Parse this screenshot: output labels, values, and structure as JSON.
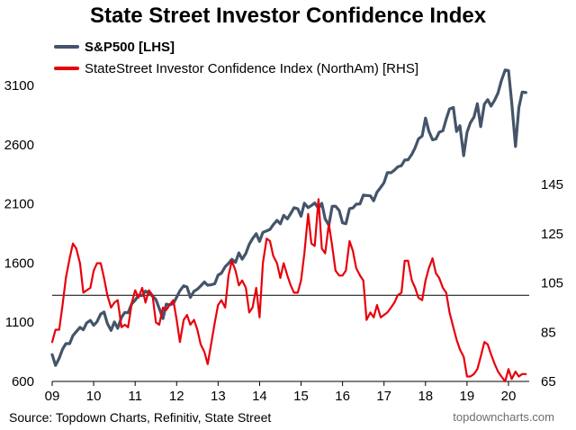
{
  "title": "State Street Investor Confidence Index",
  "colors": {
    "spx": "#44546a",
    "icc": "#e8000b",
    "axis": "#000000"
  },
  "legend": {
    "spx_label": "S&P500 [LHS]",
    "icc_label": "StateStreet Investor Confidence Index (NorthAm) [RHS]"
  },
  "source": "Source: Topdown Charts, Refinitiv, State Street",
  "brand": "topdowncharts.com",
  "chart_data": {
    "type": "line",
    "title": "State Street Investor Confidence Index",
    "x_range": [
      2009.0,
      2020.5
    ],
    "x_ticks": [
      {
        "value": 2009,
        "label": "09"
      },
      {
        "value": 2010,
        "label": "10"
      },
      {
        "value": 2011,
        "label": "11"
      },
      {
        "value": 2012,
        "label": "12"
      },
      {
        "value": 2013,
        "label": "13"
      },
      {
        "value": 2014,
        "label": "14"
      },
      {
        "value": 2015,
        "label": "15"
      },
      {
        "value": 2016,
        "label": "16"
      },
      {
        "value": 2017,
        "label": "17"
      },
      {
        "value": 2018,
        "label": "18"
      },
      {
        "value": 2019,
        "label": "19"
      },
      {
        "value": 2020,
        "label": "20"
      }
    ],
    "left_axis": {
      "range": [
        600,
        3100
      ],
      "ticks": [
        600,
        1100,
        1600,
        2100,
        2600,
        3100
      ]
    },
    "right_axis": {
      "range": [
        65,
        145
      ],
      "ticks": [
        65,
        85,
        105,
        125,
        145
      ]
    },
    "reference_line": {
      "axis": "right",
      "value": 100
    },
    "grid": false,
    "series": [
      {
        "name": "S&P500 [LHS]",
        "axis": "left",
        "x": [
          2009.0,
          2009.08,
          2009.17,
          2009.25,
          2009.33,
          2009.42,
          2009.5,
          2009.58,
          2009.67,
          2009.75,
          2009.83,
          2009.92,
          2010.0,
          2010.08,
          2010.17,
          2010.25,
          2010.33,
          2010.42,
          2010.5,
          2010.58,
          2010.67,
          2010.75,
          2010.83,
          2010.92,
          2011.0,
          2011.08,
          2011.17,
          2011.25,
          2011.33,
          2011.42,
          2011.5,
          2011.58,
          2011.67,
          2011.75,
          2011.83,
          2011.92,
          2012.0,
          2012.08,
          2012.17,
          2012.25,
          2012.33,
          2012.42,
          2012.5,
          2012.58,
          2012.67,
          2012.75,
          2012.83,
          2012.92,
          2013.0,
          2013.08,
          2013.17,
          2013.25,
          2013.33,
          2013.42,
          2013.5,
          2013.58,
          2013.67,
          2013.75,
          2013.83,
          2013.92,
          2014.0,
          2014.08,
          2014.17,
          2014.25,
          2014.33,
          2014.42,
          2014.5,
          2014.58,
          2014.67,
          2014.75,
          2014.83,
          2014.92,
          2015.0,
          2015.08,
          2015.17,
          2015.25,
          2015.33,
          2015.42,
          2015.5,
          2015.58,
          2015.67,
          2015.75,
          2015.83,
          2015.92,
          2016.0,
          2016.08,
          2016.17,
          2016.25,
          2016.33,
          2016.42,
          2016.5,
          2016.58,
          2016.67,
          2016.75,
          2016.83,
          2016.92,
          2017.0,
          2017.08,
          2017.17,
          2017.25,
          2017.33,
          2017.42,
          2017.5,
          2017.58,
          2017.67,
          2017.75,
          2017.83,
          2017.92,
          2018.0,
          2018.08,
          2018.17,
          2018.25,
          2018.33,
          2018.42,
          2018.5,
          2018.58,
          2018.67,
          2018.75,
          2018.83,
          2018.92,
          2019.0,
          2019.08,
          2019.17,
          2019.25,
          2019.33,
          2019.42,
          2019.5,
          2019.58,
          2019.67,
          2019.75,
          2019.83,
          2019.92,
          2020.0,
          2020.08,
          2020.17,
          2020.25,
          2020.33,
          2020.42
        ],
        "values": [
          826,
          735,
          797,
          872,
          919,
          919,
          987,
          1020,
          1057,
          1036,
          1095,
          1115,
          1074,
          1104,
          1169,
          1187,
          1089,
          1031,
          1102,
          1049,
          1141,
          1183,
          1180,
          1257,
          1286,
          1327,
          1325,
          1363,
          1345,
          1320,
          1292,
          1218,
          1131,
          1253,
          1247,
          1257,
          1312,
          1366,
          1408,
          1398,
          1310,
          1362,
          1379,
          1406,
          1440,
          1412,
          1416,
          1426,
          1498,
          1514,
          1569,
          1597,
          1631,
          1606,
          1686,
          1633,
          1682,
          1757,
          1806,
          1848,
          1783,
          1859,
          1872,
          1884,
          1924,
          1960,
          1931,
          2003,
          1972,
          2018,
          2067,
          2059,
          1995,
          2105,
          2068,
          2086,
          2107,
          2063,
          2104,
          1972,
          1920,
          2079,
          2080,
          2044,
          1940,
          1932,
          2060,
          2065,
          2097,
          2099,
          2174,
          2171,
          2168,
          2126,
          2199,
          2239,
          2279,
          2364,
          2363,
          2384,
          2412,
          2423,
          2470,
          2472,
          2519,
          2575,
          2648,
          2674,
          2824,
          2714,
          2641,
          2648,
          2705,
          2718,
          2816,
          2902,
          2914,
          2712,
          2760,
          2507,
          2704,
          2784,
          2834,
          2946,
          2752,
          2942,
          2980,
          2926,
          2977,
          3038,
          3141,
          3231,
          3226,
          2954,
          2585,
          2912,
          3044,
          3040
        ]
      },
      {
        "name": "StateStreet Investor Confidence Index (NorthAm) [RHS]",
        "axis": "right",
        "x": [
          2009.0,
          2009.08,
          2009.17,
          2009.25,
          2009.33,
          2009.42,
          2009.5,
          2009.58,
          2009.67,
          2009.75,
          2009.83,
          2009.92,
          2010.0,
          2010.08,
          2010.17,
          2010.25,
          2010.33,
          2010.42,
          2010.5,
          2010.58,
          2010.67,
          2010.75,
          2010.83,
          2010.92,
          2011.0,
          2011.08,
          2011.17,
          2011.25,
          2011.33,
          2011.42,
          2011.5,
          2011.58,
          2011.67,
          2011.75,
          2011.83,
          2011.92,
          2012.0,
          2012.08,
          2012.17,
          2012.25,
          2012.33,
          2012.42,
          2012.5,
          2012.58,
          2012.67,
          2012.75,
          2012.83,
          2012.92,
          2013.0,
          2013.08,
          2013.17,
          2013.25,
          2013.33,
          2013.42,
          2013.5,
          2013.58,
          2013.67,
          2013.75,
          2013.83,
          2013.92,
          2014.0,
          2014.08,
          2014.17,
          2014.25,
          2014.33,
          2014.42,
          2014.5,
          2014.58,
          2014.67,
          2014.75,
          2014.83,
          2014.92,
          2015.0,
          2015.08,
          2015.17,
          2015.25,
          2015.33,
          2015.42,
          2015.5,
          2015.58,
          2015.67,
          2015.75,
          2015.83,
          2015.92,
          2016.0,
          2016.08,
          2016.17,
          2016.25,
          2016.33,
          2016.42,
          2016.5,
          2016.58,
          2016.67,
          2016.75,
          2016.83,
          2016.92,
          2017.0,
          2017.08,
          2017.17,
          2017.25,
          2017.33,
          2017.42,
          2017.5,
          2017.58,
          2017.67,
          2017.75,
          2017.83,
          2017.92,
          2018.0,
          2018.08,
          2018.17,
          2018.25,
          2018.33,
          2018.42,
          2018.5,
          2018.58,
          2018.67,
          2018.75,
          2018.83,
          2018.92,
          2019.0,
          2019.08,
          2019.17,
          2019.25,
          2019.33,
          2019.42,
          2019.5,
          2019.58,
          2019.67,
          2019.75,
          2019.83,
          2019.92,
          2020.0,
          2020.08,
          2020.17,
          2020.25,
          2020.33,
          2020.42
        ],
        "values": [
          81,
          86,
          86,
          96,
          107,
          115,
          121,
          119,
          113,
          101,
          102,
          103,
          110,
          113,
          113,
          107,
          100,
          95,
          97,
          98,
          87,
          88,
          87,
          97,
          102,
          99,
          103,
          97,
          102,
          100,
          89,
          88,
          95,
          94,
          96,
          98,
          90,
          81,
          90,
          92,
          88,
          90,
          86,
          80,
          77,
          72,
          80,
          89,
          96,
          98,
          95,
          108,
          114,
          110,
          104,
          106,
          103,
          93,
          95,
          103,
          91,
          113,
          123,
          122,
          116,
          113,
          107,
          113,
          108,
          104,
          101,
          101,
          106,
          117,
          133,
          121,
          120,
          139,
          119,
          117,
          129,
          120,
          110,
          108,
          108,
          110,
          122,
          118,
          111,
          108,
          106,
          90,
          93,
          91,
          96,
          91,
          92,
          93,
          95,
          97,
          100,
          101,
          114,
          114,
          106,
          103,
          99,
          98,
          106,
          111,
          115,
          109,
          107,
          103,
          101,
          93,
          87,
          82,
          78,
          75,
          67,
          67,
          68,
          70,
          75,
          81,
          80,
          76,
          72,
          69,
          67,
          65,
          70,
          66,
          69,
          67,
          68,
          68
        ]
      }
    ]
  }
}
